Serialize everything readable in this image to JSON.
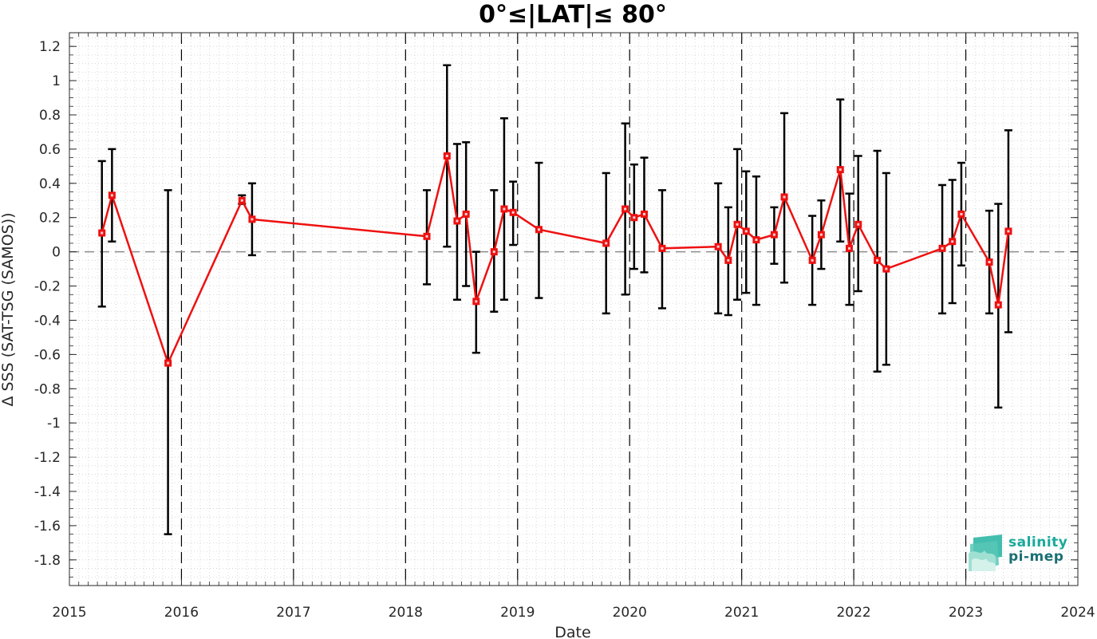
{
  "chart_data": {
    "type": "line",
    "title": "0°≤|LAT|≤ 80°",
    "xlabel": "Date",
    "ylabel": "Δ SSS (SAT-TSG (SAMOS))",
    "xlim": [
      2015,
      2024
    ],
    "ylim": [
      -1.95,
      1.28
    ],
    "x_ticks": [
      "2015",
      "2016",
      "2017",
      "2018",
      "2019",
      "2020",
      "2021",
      "2022",
      "2023",
      "2024"
    ],
    "y_ticks": [
      1.2,
      1,
      0.8,
      0.6,
      0.4,
      0.2,
      0,
      -0.2,
      -0.4,
      -0.6,
      -0.8,
      -1,
      -1.2,
      -1.4,
      -1.6,
      -1.8
    ],
    "y_tick_labels": [
      "1.2",
      "1",
      "0.8",
      "0.6",
      "0.4",
      "0.2",
      "0",
      "-0.2",
      "-0.4",
      "-0.6",
      "-0.8",
      "-1",
      "-1.2",
      "-1.4",
      "-1.6",
      "-1.8"
    ],
    "grid": true,
    "vertical_dashed_lines_at": [
      2016,
      2017,
      2018,
      2019,
      2020,
      2021,
      2022,
      2023
    ],
    "reference_line_y": 0,
    "series": [
      {
        "color": "#ee1111",
        "errorbar_color": "#000000",
        "points": [
          {
            "x": 2015.29,
            "y": 0.11,
            "low": -0.32,
            "high": 0.53
          },
          {
            "x": 2015.38,
            "y": 0.33,
            "low": 0.06,
            "high": 0.6
          },
          {
            "x": 2015.88,
            "y": -0.65,
            "low": -1.65,
            "high": 0.36
          },
          {
            "x": 2016.54,
            "y": 0.3,
            "low": 0.28,
            "high": 0.33
          },
          {
            "x": 2016.63,
            "y": 0.19,
            "low": -0.02,
            "high": 0.4
          },
          {
            "x": 2018.19,
            "y": 0.09,
            "low": -0.19,
            "high": 0.36
          },
          {
            "x": 2018.37,
            "y": 0.56,
            "low": 0.03,
            "high": 1.09
          },
          {
            "x": 2018.46,
            "y": 0.18,
            "low": -0.28,
            "high": 0.63
          },
          {
            "x": 2018.54,
            "y": 0.22,
            "low": -0.2,
            "high": 0.64
          },
          {
            "x": 2018.63,
            "y": -0.29,
            "low": -0.59,
            "high": 0.0
          },
          {
            "x": 2018.79,
            "y": 0.0,
            "low": -0.35,
            "high": 0.36
          },
          {
            "x": 2018.88,
            "y": 0.25,
            "low": -0.28,
            "high": 0.78
          },
          {
            "x": 2018.96,
            "y": 0.23,
            "low": 0.04,
            "high": 0.41
          },
          {
            "x": 2019.19,
            "y": 0.13,
            "low": -0.27,
            "high": 0.52
          },
          {
            "x": 2019.79,
            "y": 0.05,
            "low": -0.36,
            "high": 0.46
          },
          {
            "x": 2019.96,
            "y": 0.25,
            "low": -0.25,
            "high": 0.75
          },
          {
            "x": 2020.04,
            "y": 0.2,
            "low": -0.1,
            "high": 0.51
          },
          {
            "x": 2020.13,
            "y": 0.22,
            "low": -0.12,
            "high": 0.55
          },
          {
            "x": 2020.29,
            "y": 0.02,
            "low": -0.33,
            "high": 0.36
          },
          {
            "x": 2020.79,
            "y": 0.03,
            "low": -0.36,
            "high": 0.4
          },
          {
            "x": 2020.88,
            "y": -0.05,
            "low": -0.37,
            "high": 0.26
          },
          {
            "x": 2020.96,
            "y": 0.16,
            "low": -0.28,
            "high": 0.6
          },
          {
            "x": 2021.04,
            "y": 0.12,
            "low": -0.24,
            "high": 0.47
          },
          {
            "x": 2021.13,
            "y": 0.07,
            "low": -0.31,
            "high": 0.44
          },
          {
            "x": 2021.29,
            "y": 0.1,
            "low": -0.07,
            "high": 0.26
          },
          {
            "x": 2021.38,
            "y": 0.32,
            "low": -0.18,
            "high": 0.81
          },
          {
            "x": 2021.63,
            "y": -0.05,
            "low": -0.31,
            "high": 0.21
          },
          {
            "x": 2021.71,
            "y": 0.1,
            "low": -0.1,
            "high": 0.3
          },
          {
            "x": 2021.88,
            "y": 0.48,
            "low": 0.06,
            "high": 0.89
          },
          {
            "x": 2021.96,
            "y": 0.02,
            "low": -0.31,
            "high": 0.34
          },
          {
            "x": 2022.04,
            "y": 0.16,
            "low": -0.23,
            "high": 0.56
          },
          {
            "x": 2022.21,
            "y": -0.05,
            "low": -0.7,
            "high": 0.59
          },
          {
            "x": 2022.29,
            "y": -0.1,
            "low": -0.66,
            "high": 0.46
          },
          {
            "x": 2022.79,
            "y": 0.02,
            "low": -0.36,
            "high": 0.39
          },
          {
            "x": 2022.88,
            "y": 0.06,
            "low": -0.3,
            "high": 0.42
          },
          {
            "x": 2022.96,
            "y": 0.22,
            "low": -0.08,
            "high": 0.52
          },
          {
            "x": 2023.21,
            "y": -0.06,
            "low": -0.36,
            "high": 0.24
          },
          {
            "x": 2023.29,
            "y": -0.31,
            "low": -0.91,
            "high": 0.28
          },
          {
            "x": 2023.38,
            "y": 0.12,
            "low": -0.47,
            "high": 0.71
          }
        ]
      }
    ]
  },
  "logo": {
    "line1": "salinity",
    "line2": "pi-mep"
  }
}
